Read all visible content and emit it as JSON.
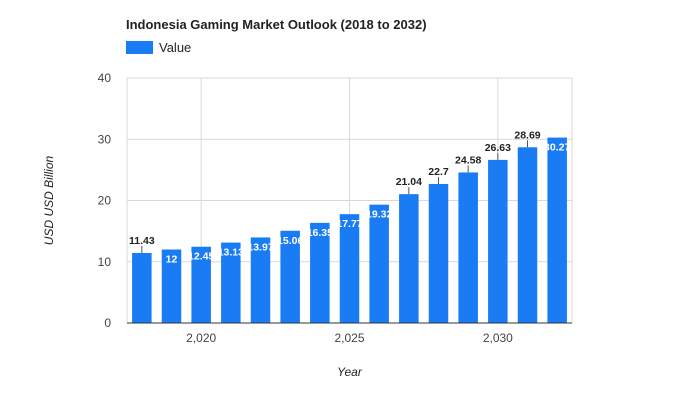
{
  "chart_data": {
    "type": "bar",
    "title": "Indonesia Gaming Market Outlook (2018 to 2032)",
    "xlabel": "Year",
    "ylabel": "USD USD Billion",
    "legend": {
      "entries": [
        "Value"
      ],
      "placement": "top-left"
    },
    "x": [
      2018,
      2019,
      2020,
      2021,
      2022,
      2023,
      2024,
      2025,
      2026,
      2027,
      2028,
      2029,
      2030,
      2031,
      2032
    ],
    "x_ticks": [
      2020,
      2025,
      2030
    ],
    "x_tick_labels": [
      "2,020",
      "2,025",
      "2,030"
    ],
    "series": [
      {
        "name": "Value",
        "values": [
          11.43,
          12,
          12.45,
          13.13,
          13.97,
          15.06,
          16.35,
          17.77,
          19.32,
          21.04,
          22.7,
          24.58,
          26.63,
          28.69,
          30.27
        ],
        "labels": [
          "11.43",
          "12",
          "12.45",
          "13.13",
          "13.97",
          "15.06",
          "16.35",
          "17.77",
          "19.32",
          "21.04",
          "22.7",
          "24.58",
          "26.63",
          "28.69",
          "30.27"
        ]
      }
    ],
    "ylim": [
      0,
      40
    ],
    "yticks": [
      0,
      10,
      20,
      30,
      40
    ],
    "grid": true,
    "colors": {
      "bar": "#1a7cf5",
      "grid": "#d9d9d9",
      "axis": "#333333",
      "label": "#222222",
      "inside_label": "#ffffff"
    }
  }
}
